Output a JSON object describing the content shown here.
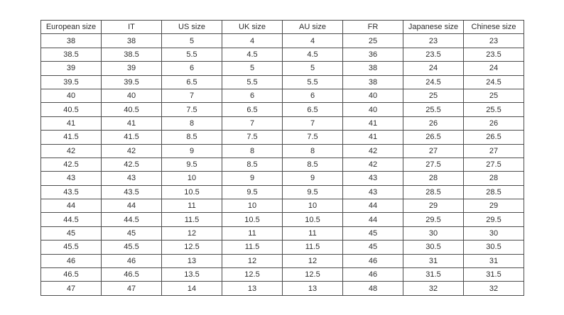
{
  "table": {
    "name": "shoe-size-conversion-table",
    "columns": [
      "European size",
      "IT",
      "US size",
      "UK size",
      "AU size",
      "FR",
      "Japanese size",
      "Chinese size"
    ],
    "rows": [
      [
        "38",
        "38",
        "5",
        "4",
        "4",
        "25",
        "23",
        "23"
      ],
      [
        "38.5",
        "38.5",
        "5.5",
        "4.5",
        "4.5",
        "36",
        "23.5",
        "23.5"
      ],
      [
        "39",
        "39",
        "6",
        "5",
        "5",
        "38",
        "24",
        "24"
      ],
      [
        "39.5",
        "39.5",
        "6.5",
        "5.5",
        "5.5",
        "38",
        "24.5",
        "24.5"
      ],
      [
        "40",
        "40",
        "7",
        "6",
        "6",
        "40",
        "25",
        "25"
      ],
      [
        "40.5",
        "40.5",
        "7.5",
        "6.5",
        "6.5",
        "40",
        "25.5",
        "25.5"
      ],
      [
        "41",
        "41",
        "8",
        "7",
        "7",
        "41",
        "26",
        "26"
      ],
      [
        "41.5",
        "41.5",
        "8.5",
        "7.5",
        "7.5",
        "41",
        "26.5",
        "26.5"
      ],
      [
        "42",
        "42",
        "9",
        "8",
        "8",
        "42",
        "27",
        "27"
      ],
      [
        "42.5",
        "42.5",
        "9.5",
        "8.5",
        "8.5",
        "42",
        "27.5",
        "27.5"
      ],
      [
        "43",
        "43",
        "10",
        "9",
        "9",
        "43",
        "28",
        "28"
      ],
      [
        "43.5",
        "43.5",
        "10.5",
        "9.5",
        "9.5",
        "43",
        "28.5",
        "28.5"
      ],
      [
        "44",
        "44",
        "11",
        "10",
        "10",
        "44",
        "29",
        "29"
      ],
      [
        "44.5",
        "44.5",
        "11.5",
        "10.5",
        "10.5",
        "44",
        "29.5",
        "29.5"
      ],
      [
        "45",
        "45",
        "12",
        "11",
        "11",
        "45",
        "30",
        "30"
      ],
      [
        "45.5",
        "45.5",
        "12.5",
        "11.5",
        "11.5",
        "45",
        "30.5",
        "30.5"
      ],
      [
        "46",
        "46",
        "13",
        "12",
        "12",
        "46",
        "31",
        "31"
      ],
      [
        "46.5",
        "46.5",
        "13.5",
        "12.5",
        "12.5",
        "46",
        "31.5",
        "31.5"
      ],
      [
        "47",
        "47",
        "14",
        "13",
        "13",
        "48",
        "32",
        "32"
      ]
    ],
    "colors": {
      "border": "#4d4d4d",
      "text": "#2e2e2e",
      "background": "#ffffff"
    }
  }
}
